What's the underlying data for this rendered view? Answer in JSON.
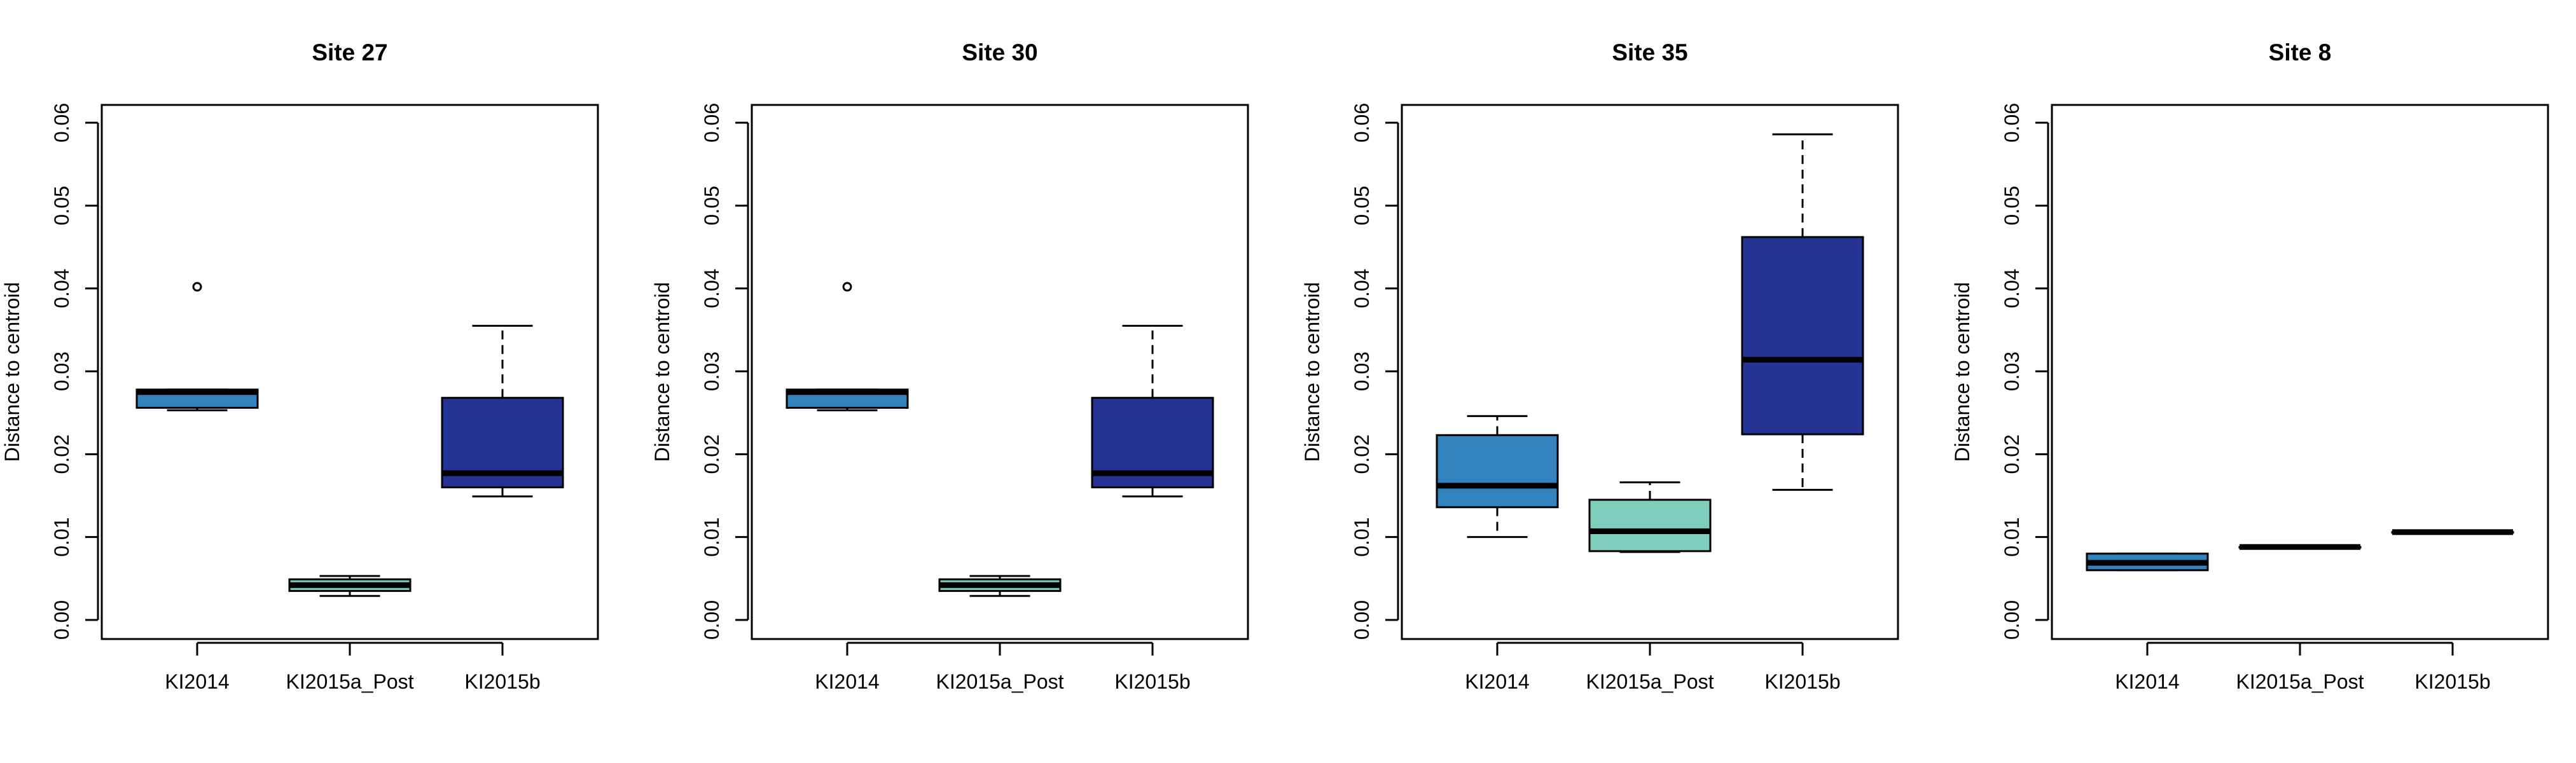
{
  "chart_data": [
    {
      "type": "boxplot",
      "title": "Site 27",
      "ylabel": "Distance to centroid",
      "xlabel": "",
      "ylim": [
        0,
        0.06
      ],
      "yticks": [
        "0.00",
        "0.01",
        "0.02",
        "0.03",
        "0.04",
        "0.05",
        "0.06"
      ],
      "categories": [
        "KI2014",
        "KI2015a_Post",
        "KI2015b"
      ],
      "colors": [
        "#3182bd",
        "#7fcdbb",
        "#253494"
      ],
      "boxes": [
        {
          "whisker_low": 0.0253,
          "q1": 0.0256,
          "median": 0.0275,
          "q3": 0.0278,
          "whisker_high": 0.0278,
          "outliers": [
            0.0402
          ]
        },
        {
          "whisker_low": 0.0029,
          "q1": 0.0035,
          "median": 0.0042,
          "q3": 0.0049,
          "whisker_high": 0.0053,
          "outliers": []
        },
        {
          "whisker_low": 0.0149,
          "q1": 0.016,
          "median": 0.0177,
          "q3": 0.0268,
          "whisker_high": 0.0355,
          "outliers": []
        }
      ]
    },
    {
      "type": "boxplot",
      "title": "Site 30",
      "ylabel": "Distance to centroid",
      "xlabel": "",
      "ylim": [
        0,
        0.06
      ],
      "yticks": [
        "0.00",
        "0.01",
        "0.02",
        "0.03",
        "0.04",
        "0.05",
        "0.06"
      ],
      "categories": [
        "KI2014",
        "KI2015a_Post",
        "KI2015b"
      ],
      "colors": [
        "#3182bd",
        "#7fcdbb",
        "#253494"
      ],
      "boxes": [
        {
          "whisker_low": 0.0253,
          "q1": 0.0256,
          "median": 0.0275,
          "q3": 0.0278,
          "whisker_high": 0.0278,
          "outliers": [
            0.0402
          ]
        },
        {
          "whisker_low": 0.0029,
          "q1": 0.0035,
          "median": 0.0042,
          "q3": 0.0049,
          "whisker_high": 0.0053,
          "outliers": []
        },
        {
          "whisker_low": 0.0149,
          "q1": 0.016,
          "median": 0.0177,
          "q3": 0.0268,
          "whisker_high": 0.0355,
          "outliers": []
        }
      ]
    },
    {
      "type": "boxplot",
      "title": "Site 35",
      "ylabel": "Distance to centroid",
      "xlabel": "",
      "ylim": [
        0,
        0.06
      ],
      "yticks": [
        "0.00",
        "0.01",
        "0.02",
        "0.03",
        "0.04",
        "0.05",
        "0.06"
      ],
      "categories": [
        "KI2014",
        "KI2015a_Post",
        "KI2015b"
      ],
      "colors": [
        "#3182bd",
        "#7fcdbb",
        "#253494"
      ],
      "boxes": [
        {
          "whisker_low": 0.01,
          "q1": 0.0136,
          "median": 0.0162,
          "q3": 0.0223,
          "whisker_high": 0.0246,
          "outliers": []
        },
        {
          "whisker_low": 0.0082,
          "q1": 0.0083,
          "median": 0.0107,
          "q3": 0.0145,
          "whisker_high": 0.0166,
          "outliers": []
        },
        {
          "whisker_low": 0.0157,
          "q1": 0.0224,
          "median": 0.0314,
          "q3": 0.0462,
          "whisker_high": 0.0586,
          "outliers": []
        }
      ]
    },
    {
      "type": "boxplot",
      "title": "Site 8",
      "ylabel": "Distance to centroid",
      "xlabel": "",
      "ylim": [
        0,
        0.06
      ],
      "yticks": [
        "0.00",
        "0.01",
        "0.02",
        "0.03",
        "0.04",
        "0.05",
        "0.06"
      ],
      "categories": [
        "KI2014",
        "KI2015a_Post",
        "KI2015b"
      ],
      "colors": [
        "#3182bd",
        "#7fcdbb",
        "#253494"
      ],
      "boxes": [
        {
          "whisker_low": 0.006,
          "q1": 0.006,
          "median": 0.0069,
          "q3": 0.008,
          "whisker_high": 0.008,
          "outliers": []
        },
        {
          "whisker_low": 0.0088,
          "q1": 0.0088,
          "median": 0.0088,
          "q3": 0.0088,
          "whisker_high": 0.0088,
          "outliers": []
        },
        {
          "whisker_low": 0.0106,
          "q1": 0.0106,
          "median": 0.0106,
          "q3": 0.0106,
          "whisker_high": 0.0106,
          "outliers": []
        }
      ]
    }
  ]
}
